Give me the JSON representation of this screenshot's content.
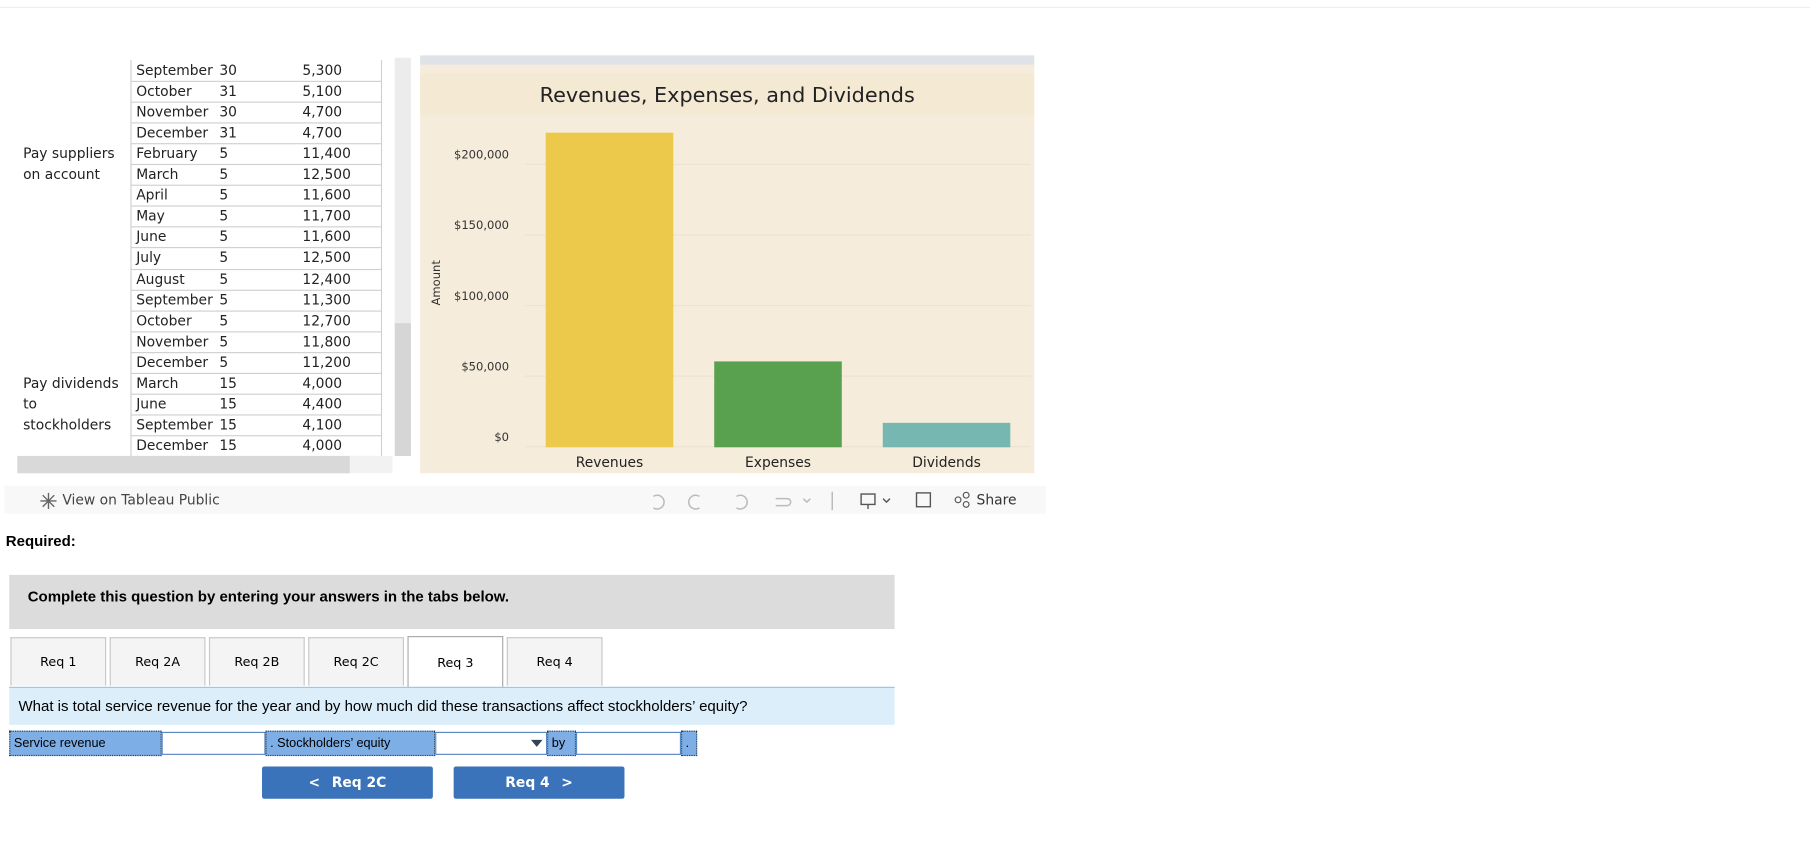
{
  "table": {
    "rows": [
      [
        null,
        "September",
        "30",
        "5,300"
      ],
      [
        null,
        "October",
        "31",
        "5,100"
      ],
      [
        null,
        "November",
        "30",
        "4,700"
      ],
      [
        null,
        "December",
        "31",
        "4,700"
      ],
      [
        [
          "Pay suppliers",
          "on account"
        ],
        "February",
        "5",
        "11,400"
      ],
      [
        null,
        "March",
        "5",
        "12,500"
      ],
      [
        null,
        "April",
        "5",
        "11,600"
      ],
      [
        null,
        "May",
        "5",
        "11,700"
      ],
      [
        null,
        "June",
        "5",
        "11,600"
      ],
      [
        null,
        "July",
        "5",
        "12,500"
      ],
      [
        null,
        "August",
        "5",
        "12,400"
      ],
      [
        null,
        "September",
        "5",
        "11,300"
      ],
      [
        null,
        "October",
        "5",
        "12,700"
      ],
      [
        null,
        "November",
        "5",
        "11,800"
      ],
      [
        null,
        "December",
        "5",
        "11,200"
      ],
      [
        [
          "Pay dividends",
          "to",
          "stockholders"
        ],
        "March",
        "15",
        "4,000"
      ],
      [
        null,
        "June",
        "15",
        "4,400"
      ],
      [
        null,
        "September",
        "15",
        "4,100"
      ],
      [
        null,
        "December",
        "15",
        "4,000"
      ]
    ]
  },
  "chart_data": {
    "type": "bar",
    "title": "Revenues, Expenses, and Dividends",
    "y_label": "Amount",
    "categories": [
      "Revenues",
      "Expenses",
      "Dividends"
    ],
    "values": [
      222000,
      60000,
      16500
    ],
    "colors": [
      "#ecc94b",
      "#59a14f",
      "#76b7b2"
    ],
    "ylim": [
      0,
      233000
    ],
    "yticks": [
      {
        "value": 0,
        "label": "$0"
      },
      {
        "value": 50000,
        "label": "$50,000"
      },
      {
        "value": 100000,
        "label": "$100,000"
      },
      {
        "value": 150000,
        "label": "$150,000"
      },
      {
        "value": 200000,
        "label": "$200,000"
      }
    ],
    "grid": true
  },
  "toolbar": {
    "view_link": "View on Tableau Public",
    "share": "Share"
  },
  "required": "Required:",
  "instruction": "Complete this question by entering your answers in the tabs below.",
  "tabs": [
    "Req 1",
    "Req 2A",
    "Req 2B",
    "Req 2C",
    "Req 3",
    "Req 4"
  ],
  "active_tab": 4,
  "question": "What is total service revenue for the year and by how much did these transactions affect stockholders’ equity?",
  "answer_row": {
    "revenue_label": "Service revenue",
    "equity_label": ". Stockholders’ equity",
    "by_label": "by",
    "end": "."
  },
  "nav": {
    "prev": "Req 2C",
    "next": "Req 4"
  }
}
